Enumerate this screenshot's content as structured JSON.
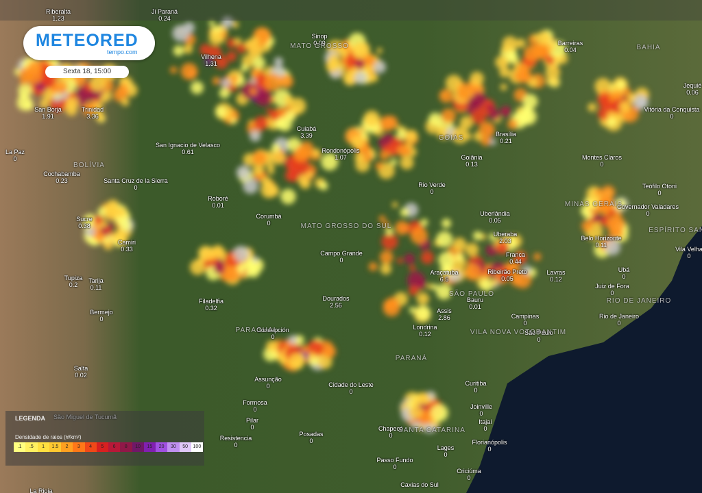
{
  "header": {
    "logo": "METEORED",
    "logo_sub": "tempo.com",
    "timestamp": "Sexta 18, 15:00"
  },
  "regions": [
    "BOLÍVIA",
    "MATO GROSSO",
    "GOIÁS",
    "MINAS GERAIS",
    "BAHIA",
    "ESPÍRITO SANTO",
    "RIO DE JANEIRO",
    "SÃO PAULO",
    "PARANÁ",
    "SANTA CATARINA",
    "MATO GROSSO DO SUL",
    "PARAGUAI",
    "VILA NOVA VOTORANTIM"
  ],
  "cities": [
    {
      "name": "Riberalta",
      "value": "1.23"
    },
    {
      "name": "Ji Paraná",
      "value": "0.24"
    },
    {
      "name": "Sinop",
      "value": "0.09"
    },
    {
      "name": "Barreiras",
      "value": "0.04"
    },
    {
      "name": "Vilhena",
      "value": "1.31"
    },
    {
      "name": "San Borja",
      "value": "1.91"
    },
    {
      "name": "Trinidad",
      "value": "3.36"
    },
    {
      "name": "Cuiabá",
      "value": "3.39"
    },
    {
      "name": "Vitória da Conquista",
      "value": "0"
    },
    {
      "name": "Jequié",
      "value": "0.06"
    },
    {
      "name": "Brasília",
      "value": "0.21"
    },
    {
      "name": "La Paz",
      "value": "0"
    },
    {
      "name": "San Ignacio de Velasco",
      "value": "0.61"
    },
    {
      "name": "Rondonópolis",
      "value": "1.07"
    },
    {
      "name": "Goiânia",
      "value": "0.13"
    },
    {
      "name": "Montes Claros",
      "value": "0"
    },
    {
      "name": "Cochabamba",
      "value": "0.23"
    },
    {
      "name": "Santa Cruz de la Sierra",
      "value": "0"
    },
    {
      "name": "Rio Verde",
      "value": "0"
    },
    {
      "name": "Teófilo Otoni",
      "value": "0"
    },
    {
      "name": "Roboré",
      "value": "0.01"
    },
    {
      "name": "Governador Valadares",
      "value": "0"
    },
    {
      "name": "Sucre",
      "value": "0.38"
    },
    {
      "name": "Corumbá",
      "value": "0"
    },
    {
      "name": "Uberlândia",
      "value": "0.05"
    },
    {
      "name": "Camiri",
      "value": "0.33"
    },
    {
      "name": "Uberaba",
      "value": "2.03"
    },
    {
      "name": "Belo Horizonte",
      "value": "0.11"
    },
    {
      "name": "Vila Velha",
      "value": "0"
    },
    {
      "name": "Campo Grande",
      "value": "0"
    },
    {
      "name": "Franca",
      "value": "0.44"
    },
    {
      "name": "Araçatuba",
      "value": "6.5"
    },
    {
      "name": "Ribeirão Preto",
      "value": "0.05"
    },
    {
      "name": "Lavras",
      "value": "0.12"
    },
    {
      "name": "Ubá",
      "value": "0"
    },
    {
      "name": "Tupiza",
      "value": "0.2"
    },
    {
      "name": "Tarija",
      "value": "0.11"
    },
    {
      "name": "Juiz de Fora",
      "value": "0"
    },
    {
      "name": "Filadelfia",
      "value": "0.32"
    },
    {
      "name": "Dourados",
      "value": "2.56"
    },
    {
      "name": "Bauru",
      "value": "0.01"
    },
    {
      "name": "Bermejo",
      "value": "0"
    },
    {
      "name": "Assis",
      "value": "2.86"
    },
    {
      "name": "Campinas",
      "value": "0"
    },
    {
      "name": "Rio de Janeiro",
      "value": "0"
    },
    {
      "name": "Londrina",
      "value": "0.12"
    },
    {
      "name": "Concepción",
      "value": "0"
    },
    {
      "name": "São Paulo",
      "value": "0"
    },
    {
      "name": "Salta",
      "value": "0.02"
    },
    {
      "name": "Assunção",
      "value": "0"
    },
    {
      "name": "Cidade do Leste",
      "value": "0"
    },
    {
      "name": "Curitiba",
      "value": "0"
    },
    {
      "name": "Formosa",
      "value": "0"
    },
    {
      "name": "Joinville",
      "value": "0"
    },
    {
      "name": "Pilar",
      "value": "0"
    },
    {
      "name": "Itajaí",
      "value": "0"
    },
    {
      "name": "Chapecó",
      "value": "0"
    },
    {
      "name": "Posadas",
      "value": "0"
    },
    {
      "name": "Resistencia",
      "value": "0"
    },
    {
      "name": "Florianópolis",
      "value": "0"
    },
    {
      "name": "Lages",
      "value": "0"
    },
    {
      "name": "Passo Fundo",
      "value": "0"
    },
    {
      "name": "Criciúma",
      "value": "0"
    },
    {
      "name": "São Miguel de Tucumã"
    },
    {
      "name": "La Rioja"
    },
    {
      "name": "Caxias do Sul"
    }
  ],
  "legend": {
    "title": "LEGENDA",
    "subtitle": "Densidade de raios (#/km²)",
    "scale": [
      ".1",
      ".5",
      "1",
      "1.5",
      "2",
      "3",
      "4",
      "5",
      "6",
      "8",
      "10",
      "15",
      "20",
      "30",
      "50",
      "100"
    ]
  }
}
